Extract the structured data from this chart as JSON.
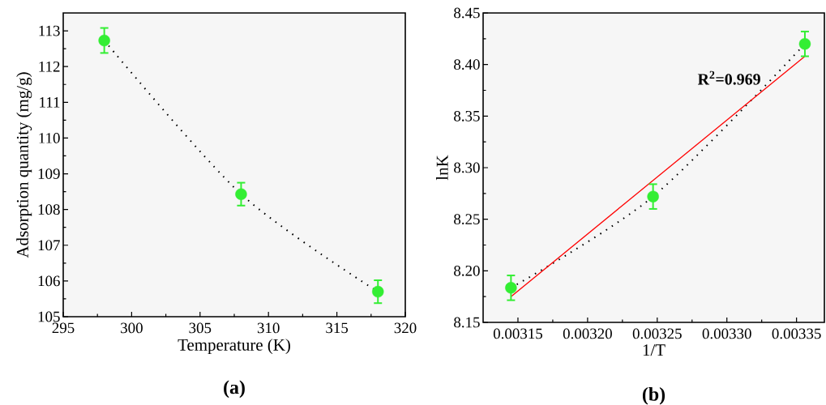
{
  "chart_data": [
    {
      "type": "scatter",
      "xlabel": "Temperature (K)",
      "ylabel": "Adsorption quantity (mg/g)",
      "x": [
        298,
        308,
        318
      ],
      "xlim": [
        295,
        320
      ],
      "xticks": [
        295,
        300,
        305,
        310,
        315,
        320
      ],
      "ylim": [
        105,
        113.5
      ],
      "yticks": [
        105,
        106,
        107,
        108,
        109,
        110,
        111,
        112,
        113
      ],
      "series": [
        {
          "type": "line",
          "color": "#000000",
          "line_style": "dotted",
          "values": [
            112.73,
            108.43,
            105.7
          ]
        },
        {
          "color": "#33ee33",
          "marker": "circle",
          "values": [
            112.73,
            108.43,
            105.7
          ],
          "errors": [
            0.35,
            0.32,
            0.32
          ]
        }
      ],
      "annotations": [
        "(a)"
      ]
    },
    {
      "type": "scatter",
      "xlabel": "1/T",
      "ylabel": "lnK",
      "x": [
        0.003145,
        0.003247,
        0.003356
      ],
      "xlim": [
        0.003125,
        0.00337
      ],
      "xticks": [
        0.00315,
        {
          "value": 0.0032,
          "label": "0.00320"
        },
        0.00325,
        {
          "value": 0.0033,
          "label": "0.00330"
        },
        0.00335
      ],
      "ylim": [
        8.15,
        8.45
      ],
      "yticks": [
        8.15,
        {
          "value": 8.2,
          "label": "8.20"
        },
        8.25,
        {
          "value": 8.3,
          "label": "8.30"
        },
        8.35,
        {
          "value": 8.4,
          "label": "8.40"
        },
        8.45
      ],
      "series": [
        {
          "type": "line",
          "color": "#000000",
          "line_style": "dotted",
          "values": [
            8.1835,
            8.272,
            8.42
          ]
        },
        {
          "type": "line",
          "color": "#ff0000",
          "line_style": "solid",
          "x": [
            0.003145,
            0.003356
          ],
          "values": [
            8.175,
            8.408
          ]
        },
        {
          "color": "#33ee33",
          "marker": "circle",
          "values": [
            8.1835,
            8.272,
            8.42
          ],
          "errors": [
            0.012,
            0.012,
            0.012
          ]
        }
      ],
      "annotations": [
        "R$^{2}$=0.969",
        "(b)"
      ]
    }
  ]
}
